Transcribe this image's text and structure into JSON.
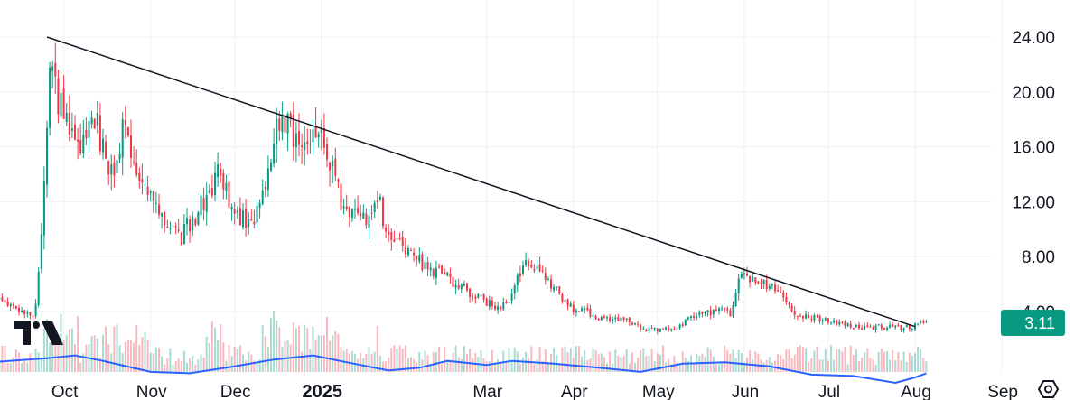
{
  "chart_data": {
    "type": "candlestick",
    "title": "",
    "xlabel": "",
    "ylabel": "",
    "x_axis": {
      "ticks": [
        {
          "label": "Oct",
          "date": "2024-10-01"
        },
        {
          "label": "Nov",
          "date": "2024-11-01"
        },
        {
          "label": "Dec",
          "date": "2024-12-01"
        },
        {
          "label": "2025",
          "date": "2025-01-01",
          "bold": true
        },
        {
          "label": "Mar",
          "date": "2025-03-01"
        },
        {
          "label": "Apr",
          "date": "2025-04-01"
        },
        {
          "label": "May",
          "date": "2025-05-01"
        },
        {
          "label": "Jun",
          "date": "2025-06-01"
        },
        {
          "label": "Jul",
          "date": "2025-07-01"
        },
        {
          "label": "Aug",
          "date": "2025-08-01"
        },
        {
          "label": "Sep",
          "date": "2025-09-01"
        }
      ],
      "range": [
        "2024-09-05",
        "2025-09-05"
      ]
    },
    "y_axis": {
      "ticks": [
        "4.00",
        "8.00",
        "12.00",
        "16.00",
        "20.00",
        "24.00"
      ],
      "tick_values": [
        4,
        8,
        12,
        16,
        20,
        24
      ],
      "range": [
        -2.1,
        26.7
      ],
      "position": "right"
    },
    "grid": true,
    "last_price": {
      "label": "3.11",
      "value": 3.11,
      "color": "#089981"
    },
    "candles": {
      "up_color": "#089981",
      "down_color": "#f23645",
      "anchors": [
        [
          "2024-09-05",
          5.3
        ],
        [
          "2024-09-15",
          4.0
        ],
        [
          "2024-09-20",
          3.6
        ],
        [
          "2024-09-21",
          4.5
        ],
        [
          "2024-09-22",
          6.5
        ],
        [
          "2024-09-23",
          10.0
        ],
        [
          "2024-09-24",
          14.0
        ],
        [
          "2024-09-25",
          18.0
        ],
        [
          "2024-09-26",
          21.0
        ],
        [
          "2024-09-27",
          22.5
        ],
        [
          "2024-09-28",
          20.0
        ],
        [
          "2024-10-01",
          18.0
        ],
        [
          "2024-10-08",
          16.0
        ],
        [
          "2024-10-12",
          18.0
        ],
        [
          "2024-10-18",
          14.0
        ],
        [
          "2024-10-22",
          17.0
        ],
        [
          "2024-10-30",
          13.0
        ],
        [
          "2024-11-05",
          11.0
        ],
        [
          "2024-11-12",
          9.5
        ],
        [
          "2024-11-20",
          12.0
        ],
        [
          "2024-11-26",
          14.5
        ],
        [
          "2024-11-30",
          11.0
        ],
        [
          "2024-12-08",
          10.5
        ],
        [
          "2024-12-12",
          13.0
        ],
        [
          "2024-12-15",
          17.0
        ],
        [
          "2024-12-20",
          17.5
        ],
        [
          "2024-12-25",
          15.0
        ],
        [
          "2024-12-30",
          17.0
        ],
        [
          "2025-01-05",
          15.0
        ],
        [
          "2025-01-08",
          12.0
        ],
        [
          "2025-01-14",
          10.5
        ],
        [
          "2025-01-18",
          11.0
        ],
        [
          "2025-01-21",
          12.5
        ],
        [
          "2025-01-24",
          10.0
        ],
        [
          "2025-02-02",
          8.0
        ],
        [
          "2025-02-10",
          7.0
        ],
        [
          "2025-02-20",
          5.8
        ],
        [
          "2025-02-28",
          4.8
        ],
        [
          "2025-03-05",
          4.3
        ],
        [
          "2025-03-10",
          5.0
        ],
        [
          "2025-03-14",
          7.5
        ],
        [
          "2025-03-20",
          7.0
        ],
        [
          "2025-03-26",
          5.5
        ],
        [
          "2025-04-01",
          4.2
        ],
        [
          "2025-04-10",
          3.6
        ],
        [
          "2025-04-20",
          3.3
        ],
        [
          "2025-04-27",
          2.6
        ],
        [
          "2025-05-06",
          2.7
        ],
        [
          "2025-05-14",
          3.6
        ],
        [
          "2025-05-22",
          4.0
        ],
        [
          "2025-05-27",
          3.9
        ],
        [
          "2025-05-30",
          6.5
        ],
        [
          "2025-06-05",
          6.2
        ],
        [
          "2025-06-12",
          5.5
        ],
        [
          "2025-06-20",
          3.8
        ],
        [
          "2025-06-28",
          3.5
        ],
        [
          "2025-07-05",
          3.2
        ],
        [
          "2025-07-13",
          2.8
        ],
        [
          "2025-07-20",
          2.9
        ],
        [
          "2025-07-28",
          2.8
        ],
        [
          "2025-08-03",
          3.1
        ],
        [
          "2025-08-05",
          3.11
        ]
      ]
    },
    "moving_average": {
      "color": "#2962ff",
      "points": [
        [
          "2024-09-05",
          0.3
        ],
        [
          "2024-09-25",
          0.6
        ],
        [
          "2024-10-05",
          0.8
        ],
        [
          "2024-10-15",
          0.4
        ],
        [
          "2024-11-01",
          -0.4
        ],
        [
          "2024-11-15",
          -0.5
        ],
        [
          "2024-12-01",
          0.0
        ],
        [
          "2024-12-15",
          0.5
        ],
        [
          "2024-12-29",
          0.8
        ],
        [
          "2025-01-10",
          0.3
        ],
        [
          "2025-01-25",
          -0.3
        ],
        [
          "2025-02-05",
          -0.1
        ],
        [
          "2025-02-15",
          0.4
        ],
        [
          "2025-03-01",
          0.1
        ],
        [
          "2025-03-10",
          0.4
        ],
        [
          "2025-03-25",
          0.2
        ],
        [
          "2025-04-10",
          -0.1
        ],
        [
          "2025-04-25",
          -0.4
        ],
        [
          "2025-05-10",
          0.2
        ],
        [
          "2025-05-25",
          0.3
        ],
        [
          "2025-06-10",
          0.0
        ],
        [
          "2025-06-25",
          -0.6
        ],
        [
          "2025-07-10",
          -0.7
        ],
        [
          "2025-07-25",
          -1.2
        ],
        [
          "2025-08-01",
          -0.8
        ],
        [
          "2025-08-05",
          -0.5
        ]
      ]
    },
    "trendline": {
      "color": "#131722",
      "points": [
        [
          "2024-09-25",
          24.0
        ],
        [
          "2025-08-01",
          2.9
        ]
      ]
    }
  },
  "watermark": {
    "name": "tradingview-logo-icon"
  }
}
